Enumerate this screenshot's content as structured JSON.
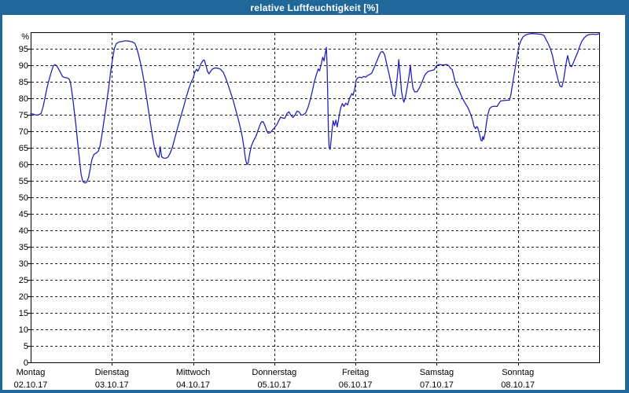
{
  "window": {
    "title": "relative Luftfeuchtigkeit [%]"
  },
  "colors": {
    "titlebar": "#20689a",
    "window_border": "#20689a",
    "plot_background": "#ffffff",
    "frame": "#000000",
    "grid": "#1a1a1a",
    "line": "#2222bb",
    "label_text": "#000000",
    "title_text": "#ffffff"
  },
  "chart_data": {
    "type": "line",
    "title": "relative Luftfeuchtigkeit [%]",
    "ylabel": "%",
    "y_unit_label": "%",
    "ylim": [
      0,
      100
    ],
    "yticks": [
      0,
      5,
      10,
      15,
      20,
      25,
      30,
      35,
      40,
      45,
      50,
      55,
      60,
      65,
      70,
      75,
      80,
      85,
      90,
      95
    ],
    "grid": true,
    "legend": "none",
    "x_unit": "hours since Monday 00:00",
    "x_total_hours": 168,
    "days": [
      {
        "name": "Montag",
        "date": "02.10.17"
      },
      {
        "name": "Dienstag",
        "date": "03.10.17"
      },
      {
        "name": "Mittwoch",
        "date": "04.10.17"
      },
      {
        "name": "Donnerstag",
        "date": "05.10.17"
      },
      {
        "name": "Freitag",
        "date": "06.10.17"
      },
      {
        "name": "Samstag",
        "date": "07.10.17"
      },
      {
        "name": "Sonntag",
        "date": "08.10.17"
      }
    ],
    "series": [
      {
        "name": "relative Luftfeuchtigkeit",
        "points": [
          [
            0,
            75.3
          ],
          [
            0.8,
            75.2
          ],
          [
            1.6,
            74.9
          ],
          [
            2.4,
            75
          ],
          [
            3.1,
            75.4
          ],
          [
            3.7,
            77.5
          ],
          [
            4.3,
            80.5
          ],
          [
            4.9,
            83.5
          ],
          [
            5.5,
            85.8
          ],
          [
            6.1,
            88
          ],
          [
            6.7,
            89.8
          ],
          [
            7.2,
            90.2
          ],
          [
            7.7,
            89.8
          ],
          [
            8.3,
            88.8
          ],
          [
            8.9,
            87.6
          ],
          [
            9.4,
            86.6
          ],
          [
            10,
            86.3
          ],
          [
            10.7,
            86.2
          ],
          [
            11.3,
            85.9
          ],
          [
            11.7,
            85
          ],
          [
            12.1,
            82.5
          ],
          [
            12.5,
            79.5
          ],
          [
            12.9,
            76
          ],
          [
            13.4,
            71.5
          ],
          [
            13.9,
            66.5
          ],
          [
            14.4,
            61.5
          ],
          [
            14.9,
            57
          ],
          [
            15.4,
            54.8
          ],
          [
            16,
            54.3
          ],
          [
            16.6,
            54.6
          ],
          [
            17.1,
            56
          ],
          [
            17.6,
            58.5
          ],
          [
            18.1,
            61.5
          ],
          [
            18.7,
            63
          ],
          [
            19.4,
            63.4
          ],
          [
            20,
            64
          ],
          [
            20.5,
            65.5
          ],
          [
            21,
            68.5
          ],
          [
            21.5,
            72
          ],
          [
            22,
            75.5
          ],
          [
            22.5,
            79
          ],
          [
            23.1,
            83.5
          ],
          [
            23.7,
            88.5
          ],
          [
            24.3,
            92.5
          ],
          [
            24.8,
            95.3
          ],
          [
            25.3,
            96.5
          ],
          [
            26,
            97
          ],
          [
            27,
            97.2
          ],
          [
            28,
            97.4
          ],
          [
            29,
            97.3
          ],
          [
            30,
            97.1
          ],
          [
            30.8,
            96.6
          ],
          [
            31.3,
            95.3
          ],
          [
            31.8,
            93.5
          ],
          [
            32.4,
            91
          ],
          [
            33,
            88
          ],
          [
            33.6,
            84.5
          ],
          [
            34.2,
            80.5
          ],
          [
            34.8,
            76.5
          ],
          [
            35.4,
            72.5
          ],
          [
            36,
            68.5
          ],
          [
            36.6,
            65
          ],
          [
            37.1,
            63.3
          ],
          [
            37.5,
            62.4
          ],
          [
            37.9,
            62.1
          ],
          [
            38.3,
            65.3
          ],
          [
            38.7,
            62.3
          ],
          [
            39.2,
            61.9
          ],
          [
            39.9,
            61.8
          ],
          [
            40.6,
            62.2
          ],
          [
            41.2,
            63.3
          ],
          [
            41.9,
            65.2
          ],
          [
            42.7,
            68.3
          ],
          [
            43.5,
            71.3
          ],
          [
            44.3,
            74.2
          ],
          [
            45.1,
            77
          ],
          [
            45.9,
            80
          ],
          [
            46.7,
            82.8
          ],
          [
            47.4,
            84.8
          ],
          [
            48,
            86
          ],
          [
            48.5,
            87.8
          ],
          [
            49,
            88.8
          ],
          [
            49.4,
            88.2
          ],
          [
            49.9,
            89.3
          ],
          [
            50.4,
            90.6
          ],
          [
            50.9,
            91.4
          ],
          [
            51.3,
            91.6
          ],
          [
            51.8,
            90
          ],
          [
            52.3,
            88
          ],
          [
            52.7,
            87.4
          ],
          [
            53.2,
            88.2
          ],
          [
            53.8,
            88.9
          ],
          [
            54.5,
            89.2
          ],
          [
            55.3,
            89.1
          ],
          [
            56.1,
            88.8
          ],
          [
            56.9,
            87.9
          ],
          [
            57.5,
            86.5
          ],
          [
            58.2,
            84.5
          ],
          [
            59,
            82
          ],
          [
            59.8,
            79.5
          ],
          [
            60.6,
            76.5
          ],
          [
            61.4,
            73.5
          ],
          [
            62,
            71
          ],
          [
            62.6,
            68
          ],
          [
            63.1,
            64.5
          ],
          [
            63.5,
            61.5
          ],
          [
            63.9,
            59.9
          ],
          [
            64.3,
            60.5
          ],
          [
            64.7,
            63
          ],
          [
            65.2,
            65.5
          ],
          [
            65.8,
            67
          ],
          [
            66.5,
            68.3
          ],
          [
            67.1,
            70
          ],
          [
            67.7,
            71.8
          ],
          [
            68.2,
            72.8
          ],
          [
            68.7,
            72.9
          ],
          [
            69.2,
            71.8
          ],
          [
            69.7,
            70.3
          ],
          [
            70.2,
            69.4
          ],
          [
            70.8,
            69.6
          ],
          [
            71.4,
            70.3
          ],
          [
            72,
            71
          ],
          [
            72.7,
            71.9
          ],
          [
            73.3,
            73.2
          ],
          [
            73.9,
            74.3
          ],
          [
            74.5,
            74
          ],
          [
            75.1,
            73.9
          ],
          [
            75.7,
            75.3
          ],
          [
            76.3,
            75.9
          ],
          [
            76.9,
            74.9
          ],
          [
            77.5,
            74.2
          ],
          [
            78.1,
            74.9
          ],
          [
            78.7,
            76.1
          ],
          [
            79.3,
            75.9
          ],
          [
            79.9,
            74.9
          ],
          [
            80.6,
            75
          ],
          [
            81.3,
            75.6
          ],
          [
            82,
            77.3
          ],
          [
            82.6,
            79.5
          ],
          [
            83.2,
            82
          ],
          [
            83.8,
            84.8
          ],
          [
            84.4,
            87
          ],
          [
            85,
            88.9
          ],
          [
            85.4,
            88.3
          ],
          [
            85.9,
            90.5
          ],
          [
            86.3,
            92.4
          ],
          [
            86.7,
            91.3
          ],
          [
            87.1,
            93.8
          ],
          [
            87.4,
            95.4
          ],
          [
            87.6,
            90
          ],
          [
            87.8,
            80
          ],
          [
            88,
            70
          ],
          [
            88.2,
            65
          ],
          [
            88.5,
            64.5
          ],
          [
            88.8,
            67.5
          ],
          [
            89.1,
            70.5
          ],
          [
            89.4,
            73.2
          ],
          [
            89.8,
            71.7
          ],
          [
            90.2,
            73.4
          ],
          [
            90.6,
            71.3
          ],
          [
            91.1,
            74.3
          ],
          [
            91.6,
            77
          ],
          [
            92.1,
            78.4
          ],
          [
            92.6,
            77.5
          ],
          [
            93.1,
            78.5
          ],
          [
            93.7,
            78
          ],
          [
            94.3,
            80.1
          ],
          [
            94.9,
            81.4
          ],
          [
            95.3,
            80.9
          ],
          [
            95.8,
            83
          ],
          [
            96.2,
            85.5
          ],
          [
            96.6,
            86.1
          ],
          [
            97.2,
            86.4
          ],
          [
            97.8,
            86.2
          ],
          [
            98.4,
            86.6
          ],
          [
            99,
            86.4
          ],
          [
            99.6,
            86.9
          ],
          [
            100.2,
            87.2
          ],
          [
            100.8,
            87.6
          ],
          [
            101.3,
            88.8
          ],
          [
            101.8,
            90
          ],
          [
            102.4,
            91.5
          ],
          [
            103,
            93
          ],
          [
            103.5,
            94
          ],
          [
            104,
            94.2
          ],
          [
            104.6,
            93.2
          ],
          [
            105.3,
            90
          ],
          [
            105.9,
            87.5
          ],
          [
            106.4,
            85
          ],
          [
            107.1,
            81
          ],
          [
            107.6,
            80.5
          ],
          [
            108.1,
            84
          ],
          [
            108.5,
            88
          ],
          [
            108.8,
            91.7
          ],
          [
            109.2,
            87
          ],
          [
            109.6,
            82
          ],
          [
            110,
            79.8
          ],
          [
            110.3,
            78.8
          ],
          [
            110.8,
            80.5
          ],
          [
            111.3,
            83.5
          ],
          [
            111.8,
            86.5
          ],
          [
            112.2,
            90
          ],
          [
            112.6,
            86
          ],
          [
            113,
            83
          ],
          [
            113.5,
            81.9
          ],
          [
            114.2,
            82
          ],
          [
            114.9,
            83.2
          ],
          [
            115.7,
            85
          ],
          [
            116.4,
            86.8
          ],
          [
            116.9,
            87.6
          ],
          [
            117.6,
            88.2
          ],
          [
            118.4,
            88.4
          ],
          [
            119.2,
            88.6
          ],
          [
            119.9,
            89.8
          ],
          [
            120.6,
            90.2
          ],
          [
            121.8,
            90.1
          ],
          [
            123,
            90.2
          ],
          [
            123.6,
            89.8
          ],
          [
            124.1,
            89
          ],
          [
            124.6,
            88.7
          ],
          [
            125,
            87
          ],
          [
            125.4,
            85.2
          ],
          [
            125.9,
            83.8
          ],
          [
            126.5,
            82.7
          ],
          [
            127.1,
            81.2
          ],
          [
            127.6,
            80
          ],
          [
            128.4,
            78.5
          ],
          [
            129.3,
            77
          ],
          [
            130.1,
            75
          ],
          [
            130.7,
            73
          ],
          [
            131,
            71.5
          ],
          [
            131.5,
            70.8
          ],
          [
            131.8,
            71.4
          ],
          [
            132.1,
            71.2
          ],
          [
            132.4,
            70
          ],
          [
            132.8,
            68.5
          ],
          [
            133.1,
            67.2
          ],
          [
            133.4,
            67.1
          ],
          [
            133.6,
            68.4
          ],
          [
            133.9,
            67.5
          ],
          [
            134.3,
            69.5
          ],
          [
            134.7,
            72.5
          ],
          [
            135.1,
            75
          ],
          [
            135.6,
            76.8
          ],
          [
            136.2,
            77.4
          ],
          [
            137,
            77.6
          ],
          [
            137.8,
            77.5
          ],
          [
            138.3,
            78.3
          ],
          [
            138.9,
            79.2
          ],
          [
            139.9,
            79.3
          ],
          [
            140.9,
            79.4
          ],
          [
            141.5,
            79.4
          ],
          [
            141.9,
            81
          ],
          [
            142.3,
            83.5
          ],
          [
            142.7,
            86
          ],
          [
            143.1,
            88.5
          ],
          [
            143.5,
            91
          ],
          [
            143.9,
            93.5
          ],
          [
            144.4,
            96
          ],
          [
            144.9,
            97.5
          ],
          [
            145.5,
            98.6
          ],
          [
            146.3,
            99.2
          ],
          [
            147.3,
            99.5
          ],
          [
            148.3,
            99.6
          ],
          [
            149.3,
            99.5
          ],
          [
            150.3,
            99.4
          ],
          [
            151.1,
            99.3
          ],
          [
            151.7,
            99
          ],
          [
            152.3,
            97.8
          ],
          [
            153,
            96.5
          ],
          [
            153.6,
            95
          ],
          [
            154.2,
            93
          ],
          [
            154.8,
            90
          ],
          [
            155.4,
            87.5
          ],
          [
            156,
            85
          ],
          [
            156.5,
            83.6
          ],
          [
            157,
            83.5
          ],
          [
            157.5,
            85.5
          ],
          [
            158,
            89
          ],
          [
            158.4,
            91.5
          ],
          [
            158.7,
            92.9
          ],
          [
            159.1,
            91
          ],
          [
            159.5,
            89.7
          ],
          [
            159.9,
            89.6
          ],
          [
            160.4,
            90.8
          ],
          [
            161,
            92.3
          ],
          [
            161.7,
            94
          ],
          [
            162.3,
            95.8
          ],
          [
            162.9,
            97.3
          ],
          [
            163.6,
            98.3
          ],
          [
            164.5,
            99.1
          ],
          [
            165.3,
            99.3
          ],
          [
            166.1,
            99.4
          ],
          [
            167,
            99.3
          ],
          [
            168,
            99.5
          ]
        ]
      }
    ]
  }
}
